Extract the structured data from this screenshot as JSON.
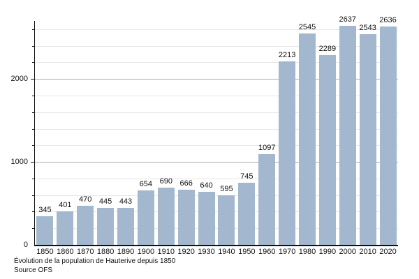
{
  "chart_data": {
    "type": "bar",
    "categories": [
      "1850",
      "1860",
      "1870",
      "1880",
      "1890",
      "1900",
      "1910",
      "1920",
      "1930",
      "1940",
      "1950",
      "1960",
      "1970",
      "1980",
      "1990",
      "2000",
      "2010",
      "2020"
    ],
    "values": [
      345,
      401,
      470,
      445,
      443,
      654,
      690,
      666,
      640,
      595,
      745,
      1097,
      2213,
      2545,
      2289,
      2637,
      2543,
      2636
    ],
    "title": "Évolution de la population de Hauterive depuis 1850",
    "source": "Source OFS",
    "xlabel": "",
    "ylabel": "",
    "ylim": [
      0,
      2700
    ],
    "yticks_labeled": [
      0,
      1000,
      2000
    ],
    "ytick_minor_step": 200,
    "grid": true,
    "legend_position": "none",
    "bar_labels_shown": true,
    "colors": {
      "bar_fill": "#a3b8cf",
      "grid_minor": "#e7e7e7",
      "grid_major": "#aaaaaa",
      "axis": "#111111",
      "text": "#111111"
    }
  }
}
